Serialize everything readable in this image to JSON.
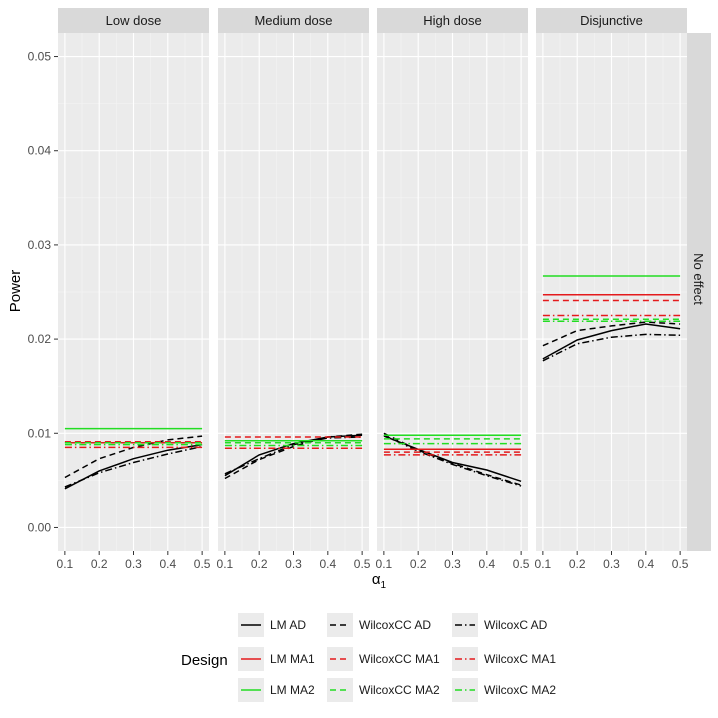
{
  "chart_data": {
    "type": "line",
    "ylabel": "Power",
    "xlabel": "α₁",
    "xlabel_base": "α",
    "xlabel_sub": "1",
    "row_strip": "No effect",
    "x": [
      0.1,
      0.2,
      0.3,
      0.4,
      0.5
    ],
    "x_ticks": [
      "0.1",
      "0.2",
      "0.3",
      "0.4",
      "0.5"
    ],
    "xlim": [
      0.08,
      0.52
    ],
    "ylim": [
      -0.0025,
      0.0525
    ],
    "y_ticks": [
      "0.00",
      "0.01",
      "0.02",
      "0.03",
      "0.04",
      "0.05"
    ],
    "y_tick_values": [
      0,
      0.01,
      0.02,
      0.03,
      0.04,
      0.05
    ],
    "grid": true,
    "legend": {
      "position": "bottom",
      "title": "Design",
      "columns": [
        [
          "LM AD",
          "LM MA1",
          "LM MA2"
        ],
        [
          "WilcoxCC AD",
          "WilcoxCC MA1",
          "WilcoxCC MA2"
        ],
        [
          "WilcoxC AD",
          "WilcoxC MA1",
          "WilcoxC MA2"
        ]
      ]
    },
    "styles": {
      "colors": {
        "AD": "#000000",
        "MA1": "#e41a1c",
        "MA2": "#22dd22"
      },
      "dash": {
        "LM": "solid",
        "WilcoxCC": "dashed",
        "WilcoxC": "dotdash"
      }
    },
    "panels": [
      {
        "title": "Low dose",
        "series": [
          {
            "name": "LM AD",
            "values": [
              0.0041,
              0.006,
              0.0073,
              0.0082,
              0.0088
            ]
          },
          {
            "name": "WilcoxCC AD",
            "values": [
              0.0053,
              0.0073,
              0.0085,
              0.0093,
              0.0097
            ]
          },
          {
            "name": "WilcoxC AD",
            "values": [
              0.0043,
              0.0058,
              0.0069,
              0.0078,
              0.0086
            ]
          },
          {
            "name": "LM MA1",
            "values": [
              0.009,
              0.009,
              0.009,
              0.009,
              0.009
            ]
          },
          {
            "name": "WilcoxCC MA1",
            "values": [
              0.0091,
              0.0091,
              0.0091,
              0.0091,
              0.0091
            ]
          },
          {
            "name": "WilcoxC MA1",
            "values": [
              0.0085,
              0.0085,
              0.0085,
              0.0085,
              0.0085
            ]
          },
          {
            "name": "LM MA2",
            "values": [
              0.0105,
              0.0105,
              0.0105,
              0.0105,
              0.0105
            ]
          },
          {
            "name": "WilcoxCC MA2",
            "values": [
              0.009,
              0.009,
              0.009,
              0.009,
              0.009
            ]
          },
          {
            "name": "WilcoxC MA2",
            "values": [
              0.0088,
              0.0088,
              0.0088,
              0.0088,
              0.0088
            ]
          }
        ]
      },
      {
        "title": "Medium dose",
        "series": [
          {
            "name": "LM AD",
            "values": [
              0.0055,
              0.0077,
              0.0089,
              0.0096,
              0.0098
            ]
          },
          {
            "name": "WilcoxCC AD",
            "values": [
              0.0052,
              0.0072,
              0.0086,
              0.0096,
              0.0099
            ]
          },
          {
            "name": "WilcoxC AD",
            "values": [
              0.0057,
              0.0073,
              0.0088,
              0.0095,
              0.0096
            ]
          },
          {
            "name": "LM MA1",
            "values": [
              0.0092,
              0.0092,
              0.0092,
              0.0092,
              0.0092
            ]
          },
          {
            "name": "WilcoxCC MA1",
            "values": [
              0.0096,
              0.0096,
              0.0096,
              0.0096,
              0.0096
            ]
          },
          {
            "name": "WilcoxC MA1",
            "values": [
              0.0084,
              0.0084,
              0.0084,
              0.0084,
              0.0084
            ]
          },
          {
            "name": "LM MA2",
            "values": [
              0.0092,
              0.0092,
              0.0092,
              0.0092,
              0.0092
            ]
          },
          {
            "name": "WilcoxCC MA2",
            "values": [
              0.009,
              0.009,
              0.009,
              0.009,
              0.009
            ]
          },
          {
            "name": "WilcoxC MA2",
            "values": [
              0.0087,
              0.0087,
              0.0087,
              0.0087,
              0.0087
            ]
          }
        ]
      },
      {
        "title": "High dose",
        "series": [
          {
            "name": "LM AD",
            "values": [
              0.0097,
              0.0083,
              0.0069,
              0.0061,
              0.0049
            ]
          },
          {
            "name": "WilcoxCC AD",
            "values": [
              0.01,
              0.0082,
              0.0068,
              0.0056,
              0.0045
            ]
          },
          {
            "name": "WilcoxC AD",
            "values": [
              0.0098,
              0.0081,
              0.0067,
              0.0055,
              0.0044
            ]
          },
          {
            "name": "LM MA1",
            "values": [
              0.0083,
              0.0083,
              0.0083,
              0.0083,
              0.0083
            ]
          },
          {
            "name": "WilcoxCC MA1",
            "values": [
              0.008,
              0.008,
              0.008,
              0.008,
              0.008
            ]
          },
          {
            "name": "WilcoxC MA1",
            "values": [
              0.0077,
              0.0077,
              0.0077,
              0.0077,
              0.0077
            ]
          },
          {
            "name": "LM MA2",
            "values": [
              0.0098,
              0.0098,
              0.0098,
              0.0098,
              0.0098
            ]
          },
          {
            "name": "WilcoxCC MA2",
            "values": [
              0.0094,
              0.0094,
              0.0094,
              0.0094,
              0.0094
            ]
          },
          {
            "name": "WilcoxC MA2",
            "values": [
              0.0089,
              0.0089,
              0.0089,
              0.0089,
              0.0089
            ]
          }
        ]
      },
      {
        "title": "Disjunctive",
        "series": [
          {
            "name": "LM AD",
            "values": [
              0.0179,
              0.0199,
              0.0209,
              0.0216,
              0.0211
            ]
          },
          {
            "name": "WilcoxCC AD",
            "values": [
              0.0193,
              0.0209,
              0.0214,
              0.0218,
              0.0216
            ]
          },
          {
            "name": "WilcoxC AD",
            "values": [
              0.0177,
              0.0195,
              0.0202,
              0.0205,
              0.0204
            ]
          },
          {
            "name": "LM MA1",
            "values": [
              0.0247,
              0.0247,
              0.0247,
              0.0247,
              0.0247
            ]
          },
          {
            "name": "WilcoxCC MA1",
            "values": [
              0.0241,
              0.0241,
              0.0241,
              0.0241,
              0.0241
            ]
          },
          {
            "name": "WilcoxC MA1",
            "values": [
              0.0225,
              0.0225,
              0.0225,
              0.0225,
              0.0225
            ]
          },
          {
            "name": "LM MA2",
            "values": [
              0.0267,
              0.0267,
              0.0267,
              0.0267,
              0.0267
            ]
          },
          {
            "name": "WilcoxCC MA2",
            "values": [
              0.0221,
              0.0221,
              0.0221,
              0.0221,
              0.0221
            ]
          },
          {
            "name": "WilcoxC MA2",
            "values": [
              0.0219,
              0.0219,
              0.0219,
              0.0219,
              0.0219
            ]
          }
        ]
      }
    ]
  }
}
